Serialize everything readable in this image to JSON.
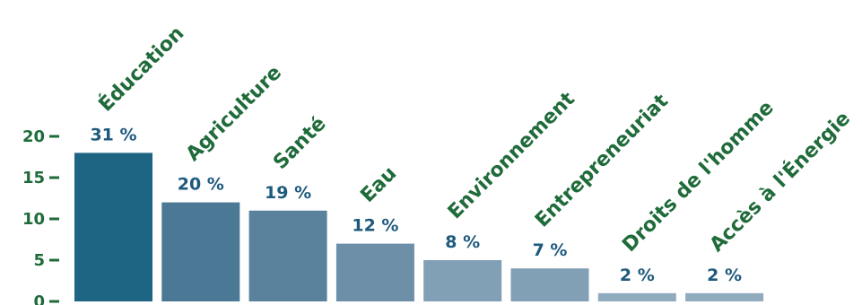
{
  "chart_data": {
    "type": "bar",
    "categories": [
      "Éducation",
      "Agriculture",
      "Santé",
      "Eau",
      "Environnement",
      "Entrepreneuriat",
      "Droits de l'homme",
      "Accès à l'Énergie"
    ],
    "values": [
      18,
      12,
      11,
      7,
      5,
      4,
      1,
      1
    ],
    "data_labels": [
      "31 %",
      "20 %",
      "19 %",
      "12 %",
      "8 %",
      "7 %",
      "2 %",
      "2 %"
    ],
    "yticks": [
      "0",
      "5",
      "10",
      "15",
      "20"
    ],
    "ylim": [
      0,
      20
    ],
    "grid": false,
    "legend": "none",
    "title": "",
    "xlabel": "",
    "ylabel": ""
  },
  "colors": {
    "category_text": "#1f6b3a",
    "axis_text": "#1f6b3a",
    "value_text": "#1e5a7d",
    "bars": [
      "#1e6584",
      "#4b7895",
      "#5a829c",
      "#6d8fa8",
      "#819fb5",
      "#819fb5",
      "#91abbe",
      "#91abbe"
    ]
  }
}
